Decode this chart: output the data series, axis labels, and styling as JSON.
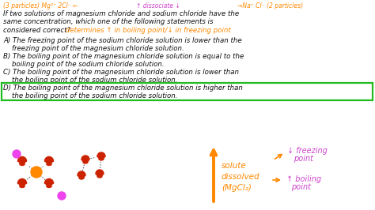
{
  "bg_color": "#ffffff",
  "figsize": [
    4.74,
    2.66
  ],
  "dpi": 100,
  "top_left_text": "(3 particles) Mg²⁺ 2Cl⁻ ←",
  "top_mid_text": "↑ dissociate ↓",
  "top_right_text": "→Na⁺ Cl⁻ (2 particles)",
  "orange": "#ff8800",
  "magenta": "#cc44cc",
  "black": "#111111",
  "green": "#22bb22",
  "darkred": "#cc2200",
  "line1": "If two solutions of magnesium chloride and sodium chloride have the",
  "line2": "same concentration, which one of the following statements is",
  "line3": "considered correct?",
  "annotation": " determines ↑ in boiling point/↓ in freezing point",
  "optA1": "A) The freezing point of the sodium chloride solution is lower than the",
  "optA2": "    freezing point of the magnesium chloride solution.",
  "optB1": "B) The boiling point of the magnesium chloride solution is equal to the",
  "optB2": "    boiling point of the sodium chloride solution.",
  "optC1": "C) The boiling point of the magnesium chloride solution is lower than",
  "optC2": "    the boiling point of the sodium chloride solution.",
  "optD1": "D) The boiling point of the magnesium chloride solution is higher than",
  "optD2": "    the boiling point of the sodium chloride solution.",
  "bottom_main_label": "solute\ndissolved\n(MgCl₂)",
  "freeze_label": "freezing\npoint",
  "boil_label": "boiling\npoint"
}
